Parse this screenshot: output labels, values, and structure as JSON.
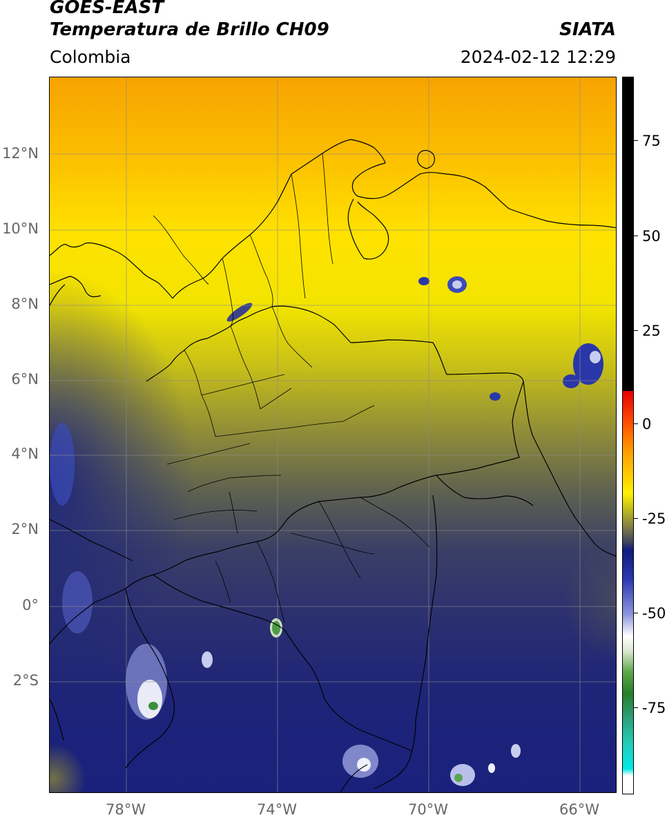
{
  "header": {
    "satellite": "GOES-EAST",
    "product": "Temperatura de Brillo CH09",
    "region": "Colombia",
    "agency": "SIATA",
    "datetime": "2024-02-12 12:29"
  },
  "map": {
    "lat_labels": [
      "12°N",
      "10°N",
      "8°N",
      "6°N",
      "4°N",
      "2°N",
      "0°",
      "2°S"
    ],
    "lon_labels": [
      "78°W",
      "74°W",
      "70°W",
      "66°W"
    ]
  },
  "colorbar": {
    "ticks": [
      "75",
      "50",
      "25",
      "0",
      "-25",
      "-50",
      "-75"
    ]
  }
}
